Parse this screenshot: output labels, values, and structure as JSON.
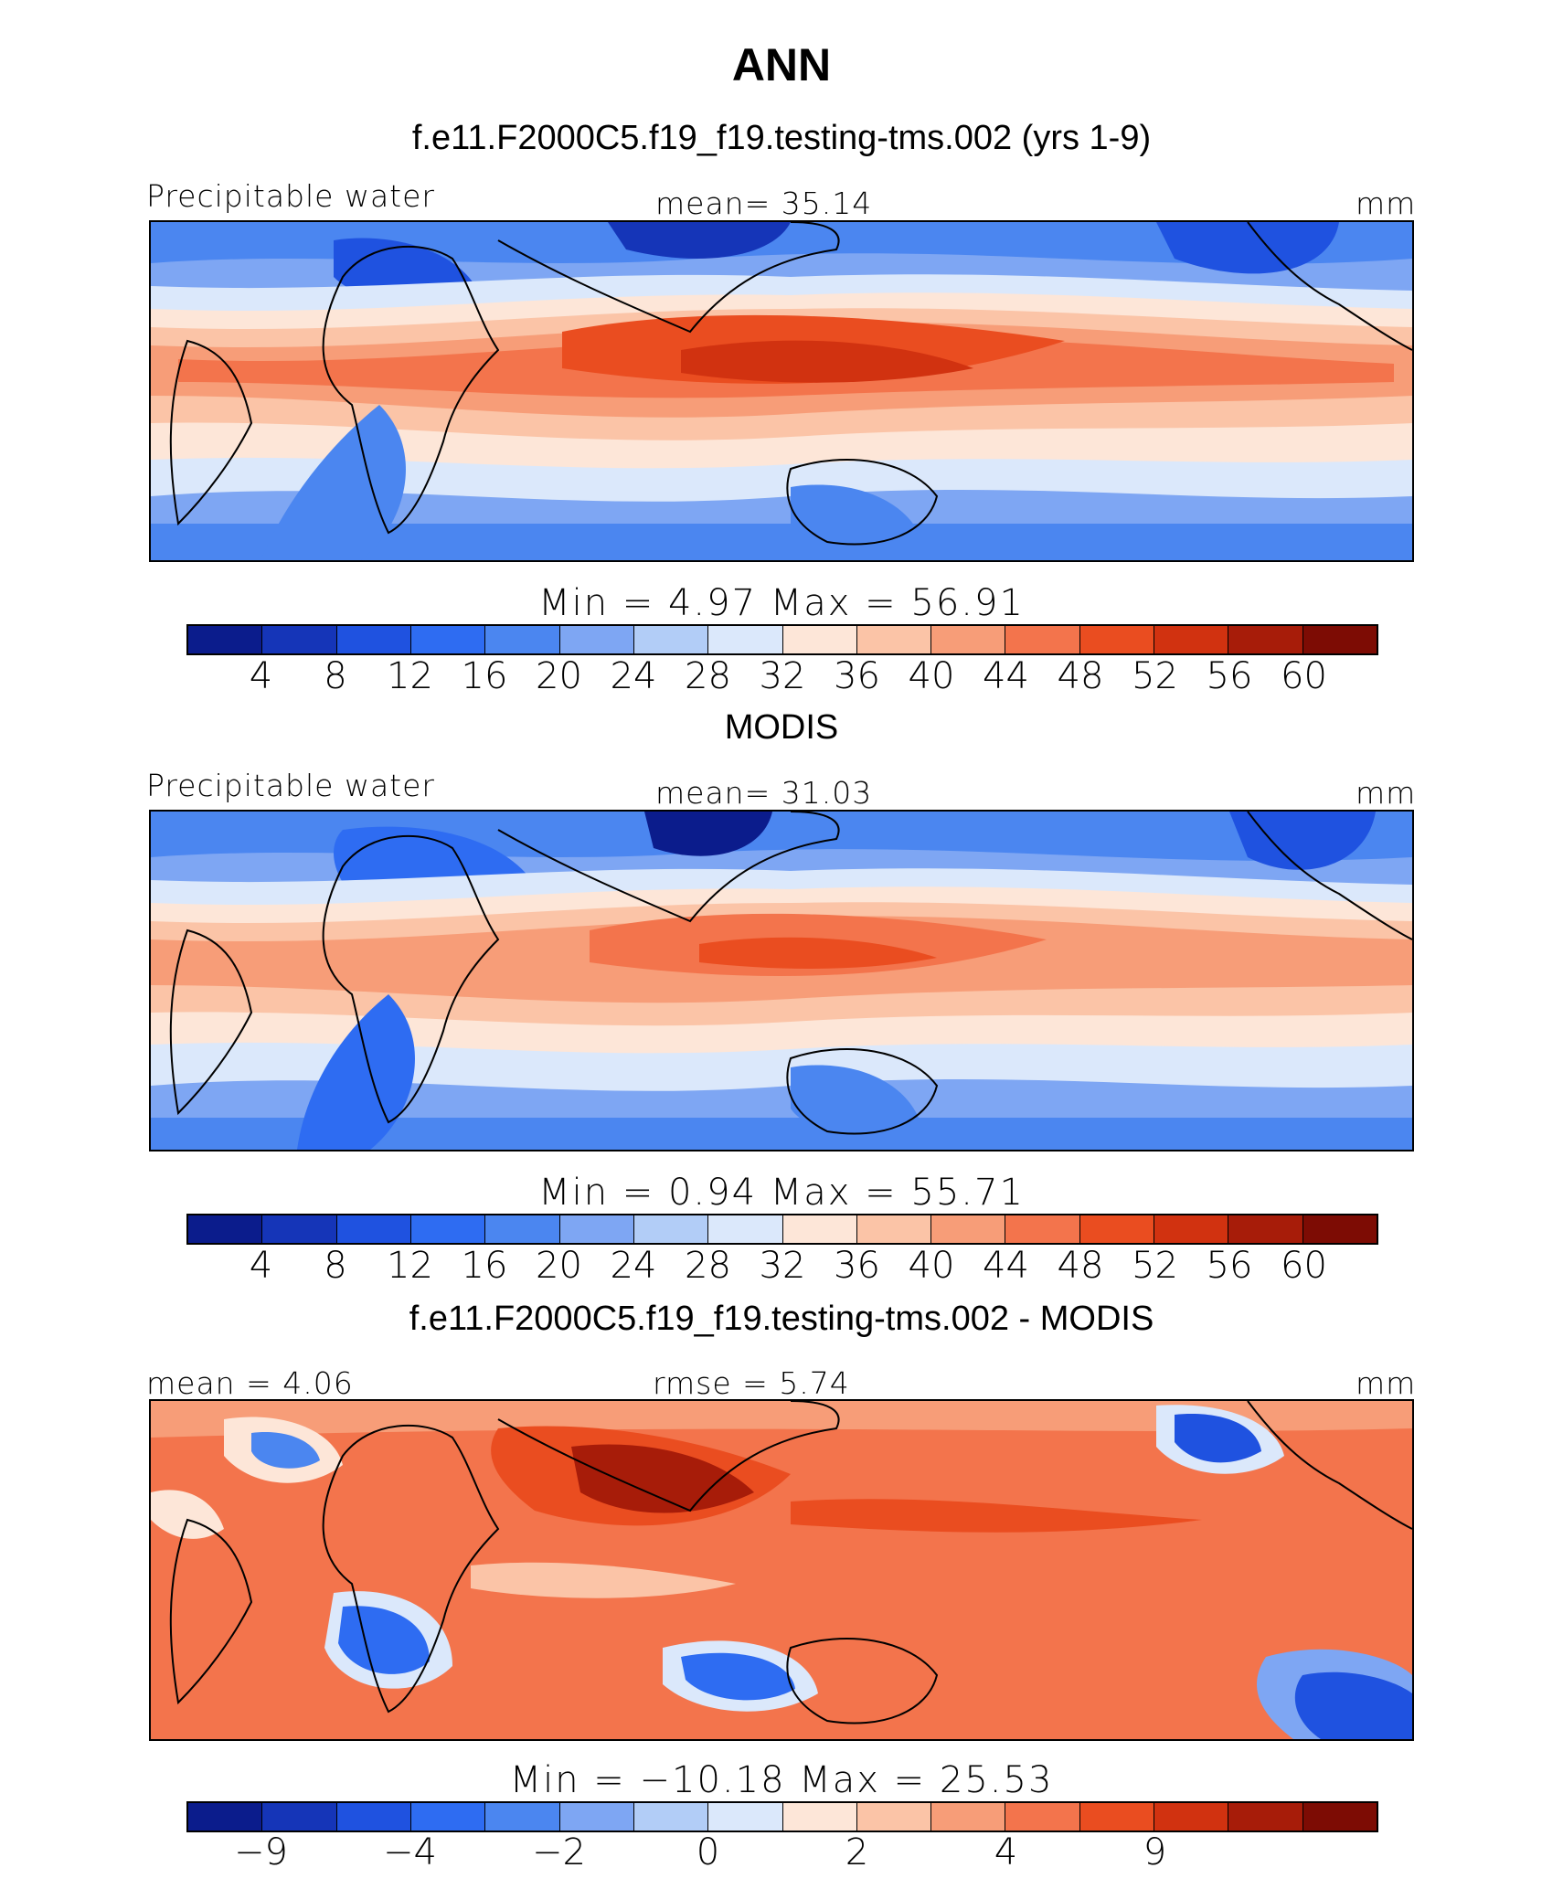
{
  "page_title": "ANN",
  "chart_data": [
    {
      "type": "heatmap",
      "title": "f.e11.F2000C5.f19_f19.testing-tms.002 (yrs 1-9)",
      "variable": "Precipitable water",
      "units": "mm",
      "mean_text": "mean=   35.14",
      "minmax_text": "Min  =     4.97  Max  =    56.91",
      "mean": 35.14,
      "min": 4.97,
      "max": 56.91,
      "levels": [
        "4",
        "8",
        "12",
        "16",
        "20",
        "24",
        "28",
        "32",
        "36",
        "40",
        "44",
        "48",
        "52",
        "56",
        "60"
      ],
      "colors": [
        "#0b1c8c",
        "#1535b8",
        "#1f52e0",
        "#2e6cf2",
        "#4b86f0",
        "#7ea6f3",
        "#b2cdf7",
        "#dbe8fb",
        "#fde6d8",
        "#fbc4a7",
        "#f79d78",
        "#f3744c",
        "#ea4d20",
        "#d13210",
        "#a71c09",
        "#7d0c04"
      ]
    },
    {
      "type": "heatmap",
      "title": "MODIS",
      "variable": "Precipitable water",
      "units": "mm",
      "mean_text": "mean=   31.03",
      "minmax_text": "Min  =     0.94  Max  =    55.71",
      "mean": 31.03,
      "min": 0.94,
      "max": 55.71,
      "levels": [
        "4",
        "8",
        "12",
        "16",
        "20",
        "24",
        "28",
        "32",
        "36",
        "40",
        "44",
        "48",
        "52",
        "56",
        "60"
      ],
      "colors": [
        "#0b1c8c",
        "#1535b8",
        "#1f52e0",
        "#2e6cf2",
        "#4b86f0",
        "#7ea6f3",
        "#b2cdf7",
        "#dbe8fb",
        "#fde6d8",
        "#fbc4a7",
        "#f79d78",
        "#f3744c",
        "#ea4d20",
        "#d13210",
        "#a71c09",
        "#7d0c04"
      ]
    },
    {
      "type": "heatmap",
      "title": "f.e11.F2000C5.f19_f19.testing-tms.002 - MODIS",
      "units": "mm",
      "mean_text": "mean  =     4.06",
      "rmse_text": "rmse  =      5.74",
      "minmax_text": "Min  =  −10.18  Max  =    25.53",
      "mean": 4.06,
      "rmse": 5.74,
      "min": -10.18,
      "max": 25.53,
      "levels": [
        "−9",
        "",
        "−4",
        "",
        "−2",
        "",
        "0",
        "",
        "2",
        "",
        "4",
        "",
        "9",
        "",
        ""
      ],
      "colors": [
        "#0b1c8c",
        "#1535b8",
        "#1f52e0",
        "#2e6cf2",
        "#4b86f0",
        "#7ea6f3",
        "#b2cdf7",
        "#dbe8fb",
        "#fde6d8",
        "#fbc4a7",
        "#f79d78",
        "#f3744c",
        "#ea4d20",
        "#d13210",
        "#a71c09",
        "#7d0c04"
      ]
    }
  ]
}
